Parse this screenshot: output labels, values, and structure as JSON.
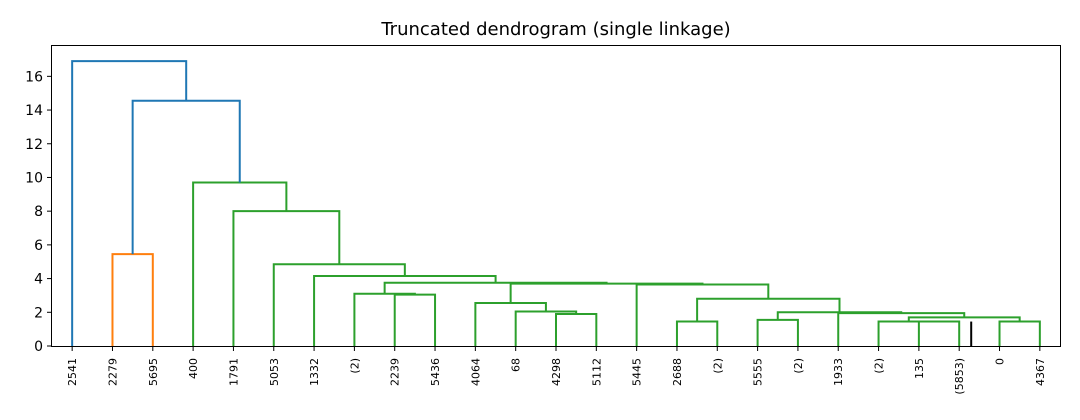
{
  "chart_data": {
    "type": "dendrogram",
    "title": "Truncated dendrogram (single linkage)",
    "xlabel": "",
    "ylabel": "",
    "ylim": [
      0,
      17.8
    ],
    "yticks": [
      0,
      2,
      4,
      6,
      8,
      10,
      12,
      14,
      16
    ],
    "grid": false,
    "legend": "none",
    "leaf_labels": [
      "2541",
      "2279",
      "5695",
      "400",
      "1791",
      "5053",
      "1332",
      "(2)",
      "2239",
      "5436",
      "4064",
      "68",
      "4298",
      "5112",
      "5445",
      "2688",
      "(2)",
      "5555",
      "(2)",
      "1933",
      "(2)",
      "135",
      "(5853)",
      "0",
      "4367"
    ],
    "colors": {
      "blue": "#1f77b4",
      "orange": "#ff7f0e",
      "green": "#2ca02c",
      "black": "#000000"
    },
    "merges": [
      {
        "left": "L21",
        "right": "L22",
        "height": 1.45,
        "color": "green",
        "note": "x"
      },
      {
        "left": "L20",
        "right": "m1",
        "height": 1.45,
        "color": "green"
      },
      {
        "left": "L23",
        "right": "L24",
        "height": 1.45,
        "color": "green"
      },
      {
        "left": "m2",
        "right": "m3",
        "height": 1.7,
        "color": "green"
      },
      {
        "left": "L19",
        "right": "m4",
        "height": 1.95,
        "color": "green"
      },
      {
        "left": "L17",
        "right": "L18",
        "height": 1.55,
        "color": "green"
      },
      {
        "left": "m6",
        "right": "m5",
        "height": 2.0,
        "color": "green"
      },
      {
        "left": "L15",
        "right": "L16",
        "height": 1.45,
        "color": "green"
      },
      {
        "left": "m8",
        "right": "m7",
        "height": 2.8,
        "color": "green"
      },
      {
        "left": "L14",
        "right": "m9",
        "height": 3.65,
        "color": "green"
      },
      {
        "left": "L12",
        "right": "L13",
        "height": 1.9,
        "color": "green"
      },
      {
        "left": "L11",
        "right": "m11",
        "height": 2.05,
        "color": "green"
      },
      {
        "left": "L10",
        "right": "m12",
        "height": 2.55,
        "color": "green"
      },
      {
        "left": "m13",
        "right": "m10",
        "height": 3.7,
        "color": "green"
      },
      {
        "left": "L8",
        "right": "L9",
        "height": 3.05,
        "color": "green"
      },
      {
        "left": "L7",
        "right": "m15",
        "height": 3.1,
        "color": "green"
      },
      {
        "left": "m16",
        "right": "m14",
        "height": 3.75,
        "color": "green"
      },
      {
        "left": "L6",
        "right": "m17",
        "height": 4.15,
        "color": "green"
      },
      {
        "left": "L5",
        "right": "m18",
        "height": 4.85,
        "color": "green"
      },
      {
        "left": "L4",
        "right": "m19",
        "height": 8.0,
        "color": "green"
      },
      {
        "left": "L3",
        "right": "m20",
        "height": 9.7,
        "color": "green"
      },
      {
        "left": "L1",
        "right": "L2",
        "height": 5.45,
        "color": "orange"
      },
      {
        "left": "m22",
        "right": "m21",
        "height": 14.55,
        "color": "blue"
      },
      {
        "left": "L0",
        "right": "m23",
        "height": 16.9,
        "color": "blue"
      }
    ],
    "leaf_stubs": [
      {
        "leaf": 22,
        "height": 1.45,
        "color": "black"
      }
    ]
  }
}
